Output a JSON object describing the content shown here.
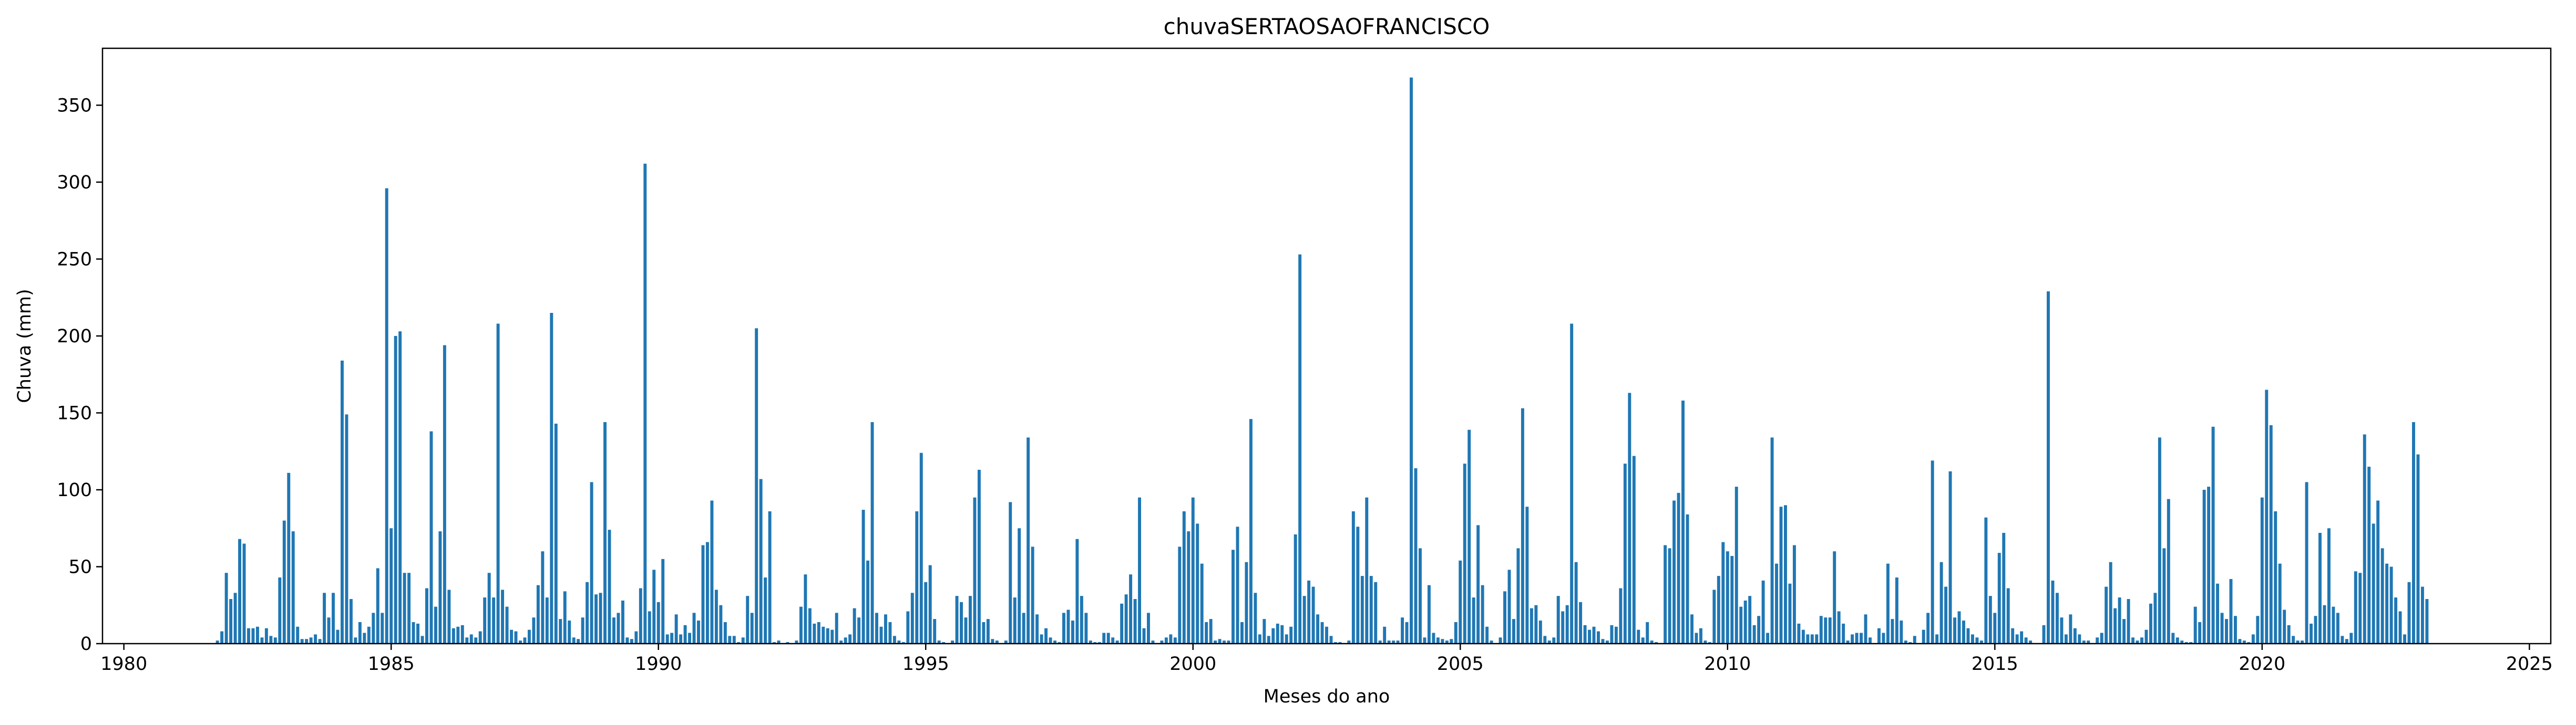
{
  "chart_data": {
    "type": "bar",
    "title": "chuvaSERTAOSAOFRANCISCO",
    "xlabel": "Meses do ano",
    "ylabel": "Chuva (mm)",
    "xlim": [
      1979.6,
      2025.4
    ],
    "ylim": [
      0,
      387
    ],
    "x_ticks": [
      1980,
      1985,
      1990,
      1995,
      2000,
      2005,
      2010,
      2015,
      2020,
      2025
    ],
    "y_ticks": [
      0,
      50,
      100,
      150,
      200,
      250,
      300,
      350
    ],
    "color": "#1f77b4",
    "grid": false,
    "legend": "none",
    "start_year": 1981,
    "start_month": 10,
    "values": [
      2,
      8,
      46,
      29,
      33,
      68,
      65,
      10,
      10,
      11,
      4,
      10,
      5,
      4,
      43,
      80,
      111,
      73,
      11,
      3,
      3,
      4,
      6,
      3,
      33,
      17,
      33,
      9,
      184,
      149,
      29,
      4,
      14,
      7,
      11,
      20,
      49,
      20,
      296,
      75,
      200,
      203,
      46,
      46,
      14,
      13,
      5,
      36,
      138,
      24,
      73,
      194,
      35,
      10,
      11,
      12,
      4,
      6,
      4,
      8,
      30,
      46,
      30,
      208,
      35,
      24,
      9,
      8,
      2,
      4,
      9,
      17,
      38,
      60,
      30,
      215,
      143,
      16,
      34,
      15,
      4,
      3,
      17,
      40,
      105,
      32,
      33,
      144,
      74,
      17,
      20,
      28,
      4,
      3,
      8,
      36,
      312,
      21,
      48,
      27,
      55,
      6,
      7,
      19,
      6,
      12,
      7,
      20,
      15,
      64,
      66,
      93,
      35,
      25,
      14,
      5,
      5,
      1,
      4,
      31,
      20,
      205,
      107,
      43,
      86,
      1,
      2,
      0,
      1,
      0,
      2,
      24,
      45,
      23,
      13,
      14,
      11,
      10,
      9,
      20,
      2,
      4,
      6,
      23,
      17,
      87,
      54,
      144,
      20,
      11,
      19,
      14,
      5,
      2,
      1,
      21,
      33,
      86,
      124,
      40,
      51,
      16,
      2,
      1,
      0,
      2,
      31,
      27,
      17,
      31,
      95,
      113,
      14,
      16,
      3,
      2,
      0,
      2,
      92,
      30,
      75,
      20,
      134,
      63,
      19,
      6,
      10,
      4,
      2,
      1,
      20,
      22,
      15,
      68,
      31,
      20,
      2,
      1,
      1,
      7,
      7,
      4,
      2,
      26,
      32,
      45,
      29,
      95,
      10,
      20,
      2,
      0,
      2,
      4,
      6,
      4,
      63,
      86,
      73,
      95,
      78,
      52,
      14,
      16,
      2,
      3,
      2,
      2,
      61,
      76,
      14,
      53,
      146,
      33,
      6,
      16,
      5,
      10,
      13,
      12,
      6,
      11,
      71,
      253,
      31,
      41,
      37,
      19,
      14,
      11,
      5,
      1,
      1,
      0,
      2,
      86,
      76,
      44,
      95,
      44,
      40,
      2,
      11,
      2,
      2,
      2,
      17,
      14,
      368,
      114,
      62,
      4,
      38,
      7,
      4,
      3,
      2,
      3,
      14,
      54,
      117,
      139,
      30,
      77,
      38,
      11,
      2,
      0,
      4,
      34,
      48,
      16,
      62,
      153,
      89,
      23,
      25,
      15,
      5,
      2,
      4,
      31,
      21,
      25,
      208,
      53,
      27,
      12,
      9,
      11,
      8,
      3,
      2,
      12,
      11,
      36,
      117,
      163,
      122,
      9,
      4,
      14,
      2,
      1,
      0,
      64,
      62,
      93,
      98,
      158,
      84,
      19,
      7,
      10,
      2,
      1,
      35,
      44,
      66,
      60,
      57,
      102,
      24,
      28,
      31,
      12,
      18,
      41,
      7,
      134,
      52,
      89,
      90,
      39,
      64,
      13,
      9,
      6,
      6,
      6,
      18,
      17,
      17,
      60,
      21,
      13,
      2,
      6,
      7,
      7,
      19,
      4,
      0,
      10,
      7,
      52,
      16,
      43,
      15,
      2,
      1,
      5,
      0,
      9,
      20,
      119,
      6,
      53,
      37,
      112,
      17,
      21,
      15,
      10,
      6,
      4,
      2,
      82,
      31,
      20,
      59,
      72,
      36,
      10,
      6,
      8,
      4,
      2,
      0,
      0,
      12,
      229,
      41,
      33,
      17,
      6,
      19,
      10,
      6,
      2,
      2,
      0,
      4,
      7,
      37,
      53,
      23,
      30,
      16,
      29,
      4,
      2,
      4,
      9,
      26,
      33,
      134,
      62,
      94,
      7,
      4,
      2,
      1,
      1,
      24,
      14,
      100,
      102,
      141,
      39,
      20,
      16,
      42,
      18,
      3,
      2,
      1,
      6,
      18,
      95,
      165,
      142,
      86,
      52,
      22,
      12,
      5,
      2,
      2,
      105,
      13,
      18,
      72,
      25,
      75,
      24,
      20,
      5,
      3,
      7,
      47,
      46,
      136,
      115,
      78,
      93,
      62,
      52,
      50,
      30,
      21,
      6,
      40,
      144,
      123,
      37,
      29
    ]
  }
}
